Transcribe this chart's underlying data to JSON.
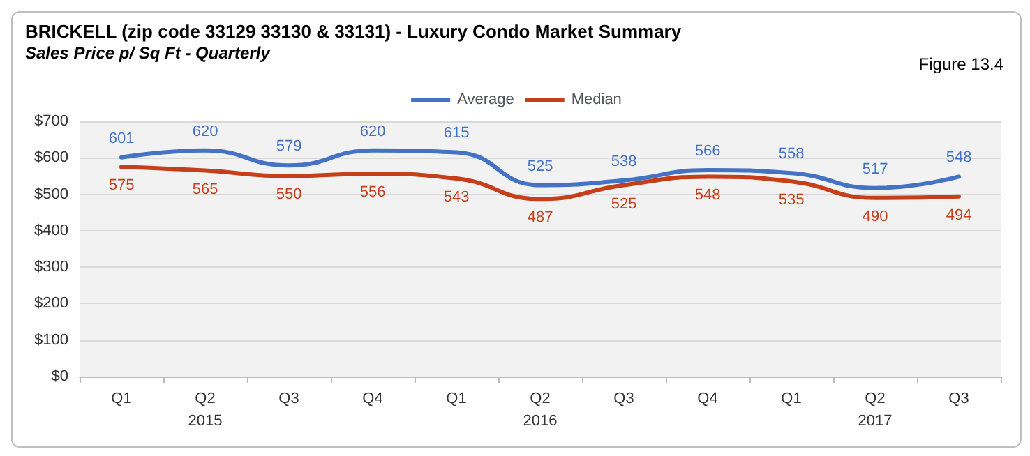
{
  "chart_data": {
    "type": "line",
    "title": "BRICKELL (zip code 33129 33130 & 33131) - Luxury Condo Market Summary",
    "subtitle": "Sales Price p/ Sq Ft - Quarterly",
    "annotations": [
      "Figure 13.4"
    ],
    "categories": [
      "Q1",
      "Q2\n2015",
      "Q3",
      "Q4",
      "Q1",
      "Q2\n2016",
      "Q3",
      "Q4",
      "Q1",
      "Q2\n2017",
      "Q3"
    ],
    "series": [
      {
        "name": "Average",
        "color": "#4472c4",
        "values": [
          601,
          620,
          579,
          620,
          615,
          525,
          538,
          566,
          558,
          517,
          548
        ]
      },
      {
        "name": "Median",
        "color": "#c5401a",
        "values": [
          575,
          565,
          550,
          556,
          543,
          487,
          525,
          548,
          535,
          490,
          494
        ]
      }
    ],
    "ylim": [
      0,
      700
    ],
    "yticks": [
      {
        "value": 0,
        "label": "$0"
      },
      {
        "value": 100,
        "label": "$100"
      },
      {
        "value": 200,
        "label": "$200"
      },
      {
        "value": 300,
        "label": "$300"
      },
      {
        "value": 400,
        "label": "$400"
      },
      {
        "value": 500,
        "label": "$500"
      },
      {
        "value": 600,
        "label": "$600"
      },
      {
        "value": 700,
        "label": "$700"
      }
    ],
    "grid": "y",
    "legend": "top",
    "data_labels": true,
    "marker": "none",
    "line_style": "solid"
  }
}
